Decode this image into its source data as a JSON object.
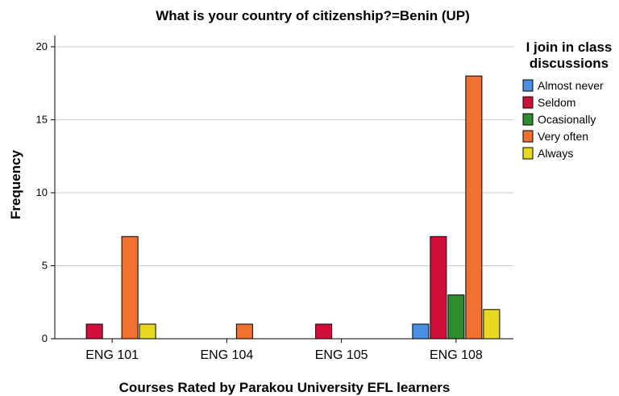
{
  "chart_data": {
    "type": "bar",
    "title": "What is your country of citizenship?=Benin (UP)",
    "xlabel": "Courses Rated by Parakou University EFL learners",
    "ylabel": "Frequency",
    "ylim": [
      0,
      20
    ],
    "yticks": [
      0,
      5,
      10,
      15,
      20
    ],
    "grid": true,
    "legend_title": [
      "I join in class",
      "discussions"
    ],
    "legend_position": "right",
    "categories": [
      "ENG 101",
      "ENG 104",
      "ENG 105",
      "ENG 108"
    ],
    "series": [
      {
        "name": "Almost never",
        "color": "#4a90e2",
        "values": [
          0,
          0,
          0,
          1
        ]
      },
      {
        "name": "Seldom",
        "color": "#d0103a",
        "values": [
          1,
          0,
          1,
          7
        ]
      },
      {
        "name": "Ocasionally",
        "color": "#2e8b2e",
        "values": [
          0,
          0,
          0,
          3
        ]
      },
      {
        "name": "Very often",
        "color": "#f07030",
        "values": [
          7,
          1,
          0,
          18
        ]
      },
      {
        "name": "Always",
        "color": "#e8d820",
        "values": [
          1,
          0,
          0,
          2
        ]
      }
    ]
  }
}
